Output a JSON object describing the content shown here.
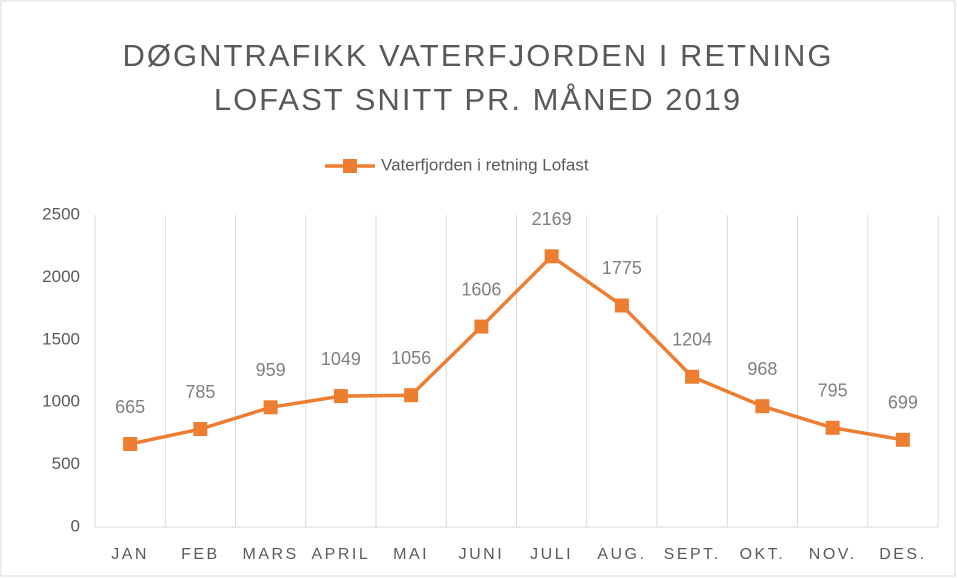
{
  "chart_data": {
    "type": "line",
    "title": [
      "DØGNTRAFIKK VATERFJORDEN I RETNING",
      "LOFAST SNITT PR. MÅNED 2019"
    ],
    "categories": [
      "JAN",
      "FEB",
      "MARS",
      "APRIL",
      "MAI",
      "JUNI",
      "JULI",
      "AUG.",
      "SEPT.",
      "OKT.",
      "NOV.",
      "DES."
    ],
    "series": [
      {
        "name": "Vaterfjorden i retning Lofast",
        "color": "#ed7d31",
        "values": [
          665,
          785,
          959,
          1049,
          1056,
          1606,
          2169,
          1775,
          1204,
          968,
          795,
          699
        ]
      }
    ],
    "ylim": [
      0,
      2500
    ],
    "yticks": [
      0,
      500,
      1000,
      1500,
      2000,
      2500
    ],
    "legend": "top"
  }
}
